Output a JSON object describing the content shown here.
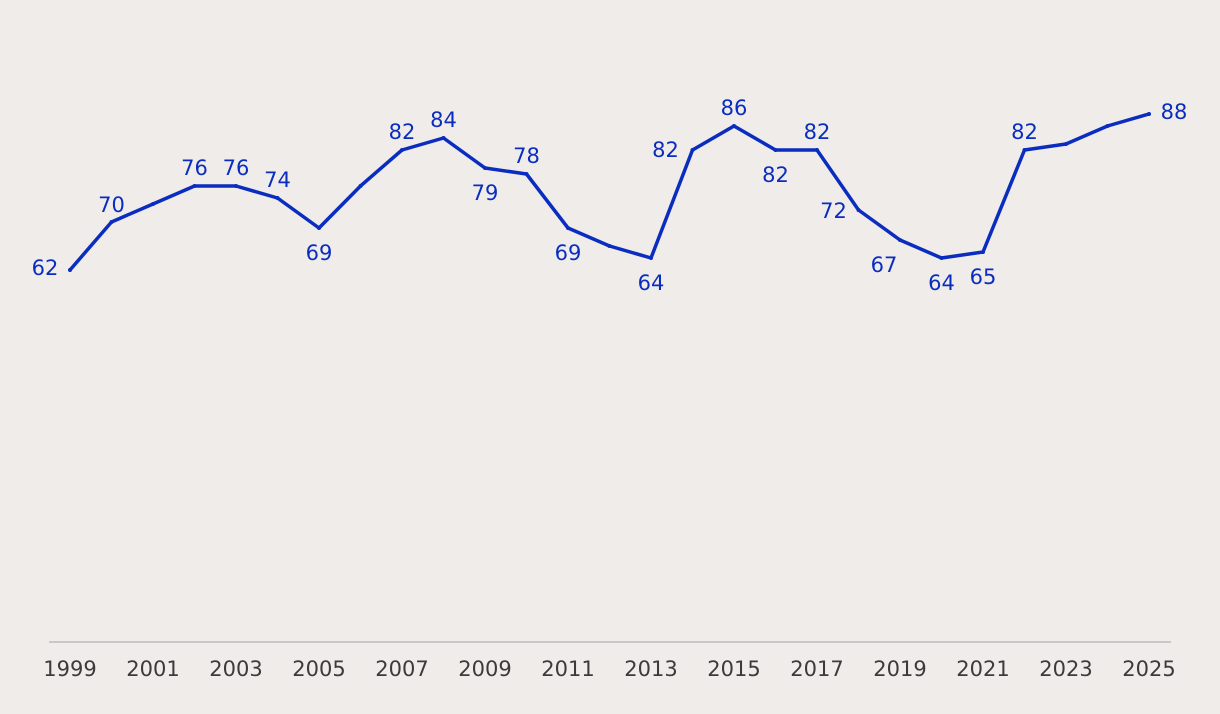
{
  "chart_data": {
    "type": "line",
    "title": "",
    "xlabel": "",
    "ylabel": "",
    "x": [
      1999,
      2000,
      2001,
      2002,
      2003,
      2004,
      2005,
      2006,
      2007,
      2008,
      2009,
      2010,
      2011,
      2012,
      2013,
      2014,
      2015,
      2016,
      2017,
      2018,
      2019,
      2020,
      2021,
      2022,
      2023,
      2024,
      2025
    ],
    "values": [
      62,
      70,
      73,
      76,
      76,
      74,
      69,
      76,
      82,
      84,
      79,
      78,
      69,
      66,
      64,
      82,
      86,
      82,
      82,
      72,
      67,
      64,
      65,
      82,
      83,
      86,
      88
    ],
    "data_labels": [
      "62",
      "70",
      "",
      "76",
      "76",
      "74",
      "69",
      "",
      "82",
      "84",
      "79",
      "78",
      "69",
      "",
      "64",
      "82",
      "86",
      "82",
      "82",
      "72",
      "67",
      "64",
      "65",
      "82",
      "",
      "",
      "88"
    ],
    "x_tick_labels": [
      "1999",
      "2001",
      "2003",
      "2005",
      "2007",
      "2009",
      "2011",
      "2013",
      "2015",
      "2017",
      "2019",
      "2021",
      "2023",
      "2025"
    ],
    "ylim": [
      0,
      100
    ],
    "grid": false,
    "line_color": "#0a2dbf",
    "axis_color": "#c8c8c8",
    "background": "#f0ecea"
  }
}
